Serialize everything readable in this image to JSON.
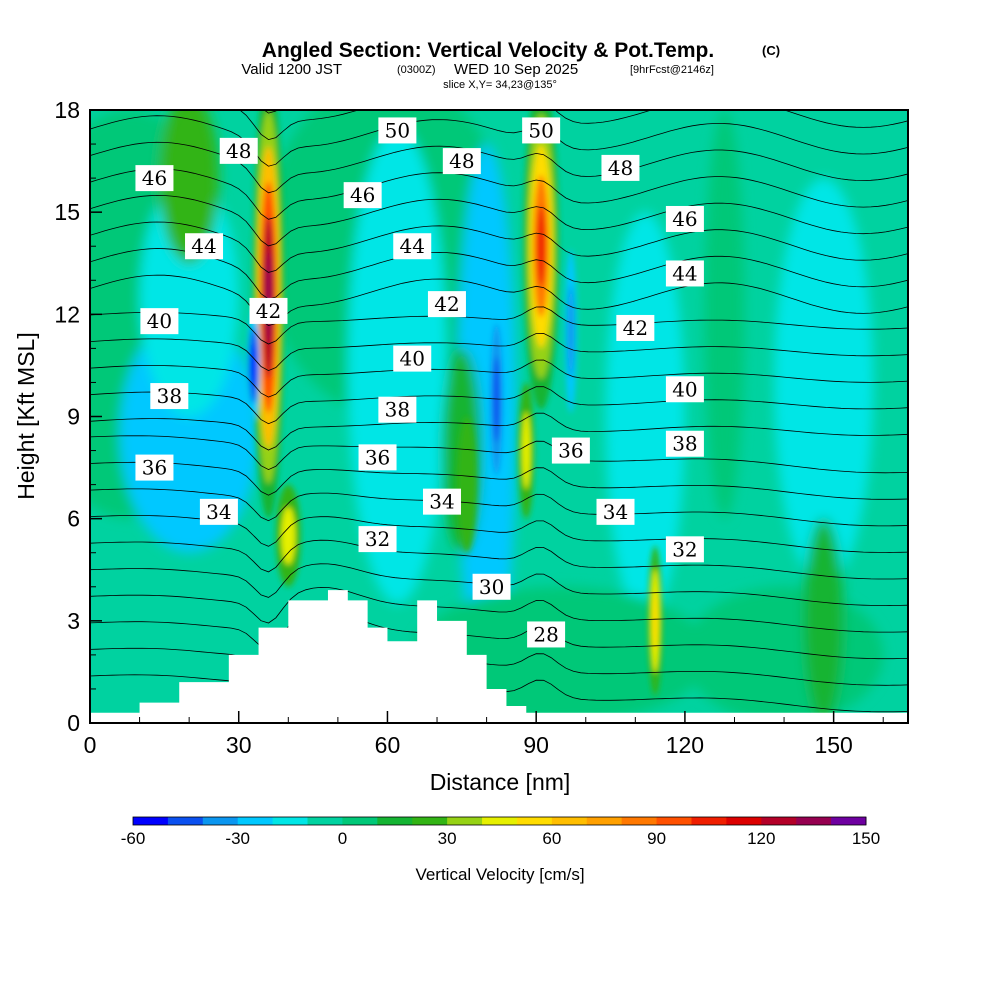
{
  "chart_data": {
    "type": "heatmap",
    "title": "Angled Section: Vertical Velocity & Pot.Temp.",
    "title_units": "(C)",
    "subtitle_prefix": "Valid 1200 JST",
    "subtitle_utc": "(0300Z)",
    "subtitle_date": "WED 10 Sep 2025",
    "subtitle_fcst": "[9hrFcst@2146z]",
    "slice_info": "slice X,Y= 34,23@135°",
    "xlabel": "Distance [nm]",
    "ylabel": "Height [Kft MSL]",
    "xlim": [
      0,
      165
    ],
    "ylim": [
      0,
      18
    ],
    "x_ticks": [
      0,
      30,
      60,
      90,
      120,
      150
    ],
    "y_ticks": [
      0,
      3,
      6,
      9,
      12,
      15,
      18
    ],
    "colorbar": {
      "label": "Vertical Velocity [cm/s]",
      "min": -60,
      "max": 150,
      "step": 10,
      "tick_values": [
        -60,
        -30,
        0,
        30,
        60,
        90,
        120,
        150
      ],
      "colors": [
        "#0000ff",
        "#0a50f0",
        "#0a96f0",
        "#00c8ff",
        "#00e6e6",
        "#00d2a0",
        "#00c878",
        "#14b432",
        "#32b414",
        "#96d214",
        "#e6f000",
        "#ffdc00",
        "#ffbe00",
        "#ffa000",
        "#ff7800",
        "#ff5000",
        "#f01e00",
        "#dc0000",
        "#b40028",
        "#960050",
        "#6e00a0"
      ]
    },
    "terrain_profile_kft": {
      "x_nm": [
        0,
        10,
        18,
        28,
        34,
        40,
        48,
        52,
        56,
        60,
        66,
        70,
        76,
        80,
        84,
        88,
        165
      ],
      "height": [
        0.3,
        0.6,
        1.2,
        2.0,
        2.8,
        3.6,
        3.9,
        3.6,
        2.8,
        2.4,
        3.6,
        3.0,
        2.0,
        1.0,
        0.5,
        0.3,
        0.3
      ]
    },
    "vertical_velocity_features": [
      {
        "x_nm": 36,
        "z_kft": 12.5,
        "peak_cm_s": 130,
        "kind": "updraft"
      },
      {
        "x_nm": 91,
        "z_kft": 14.0,
        "peak_cm_s": 100,
        "kind": "updraft"
      },
      {
        "x_nm": 33,
        "z_kft": 10.5,
        "peak_cm_s": -50,
        "kind": "downdraft"
      },
      {
        "x_nm": 82,
        "z_kft": 9.5,
        "peak_cm_s": -45,
        "kind": "downdraft"
      },
      {
        "x_nm": 97,
        "z_kft": 11.5,
        "peak_cm_s": -40,
        "kind": "downdraft"
      },
      {
        "x_nm": 114,
        "z_kft": 3.0,
        "peak_cm_s": 50,
        "kind": "updraft"
      }
    ],
    "theta_contour_labels": [
      {
        "value": "50",
        "x": 62,
        "z": 17.4
      },
      {
        "value": "50",
        "x": 91,
        "z": 17.4
      },
      {
        "value": "48",
        "x": 30,
        "z": 16.8
      },
      {
        "value": "48",
        "x": 75,
        "z": 16.5
      },
      {
        "value": "48",
        "x": 107,
        "z": 16.3
      },
      {
        "value": "46",
        "x": 13,
        "z": 16.0
      },
      {
        "value": "46",
        "x": 55,
        "z": 15.5
      },
      {
        "value": "46",
        "x": 120,
        "z": 14.8
      },
      {
        "value": "44",
        "x": 23,
        "z": 14.0
      },
      {
        "value": "44",
        "x": 65,
        "z": 14.0
      },
      {
        "value": "44",
        "x": 120,
        "z": 13.2
      },
      {
        "value": "42",
        "x": 36,
        "z": 12.1
      },
      {
        "value": "42",
        "x": 72,
        "z": 12.3
      },
      {
        "value": "42",
        "x": 110,
        "z": 11.6
      },
      {
        "value": "40",
        "x": 14,
        "z": 11.8
      },
      {
        "value": "40",
        "x": 65,
        "z": 10.7
      },
      {
        "value": "40",
        "x": 120,
        "z": 9.8
      },
      {
        "value": "38",
        "x": 16,
        "z": 9.6
      },
      {
        "value": "38",
        "x": 62,
        "z": 9.2
      },
      {
        "value": "38",
        "x": 120,
        "z": 8.2
      },
      {
        "value": "36",
        "x": 13,
        "z": 7.5
      },
      {
        "value": "36",
        "x": 58,
        "z": 7.8
      },
      {
        "value": "36",
        "x": 97,
        "z": 8.0
      },
      {
        "value": "34",
        "x": 26,
        "z": 6.2
      },
      {
        "value": "34",
        "x": 71,
        "z": 6.5
      },
      {
        "value": "34",
        "x": 106,
        "z": 6.2
      },
      {
        "value": "32",
        "x": 58,
        "z": 5.4
      },
      {
        "value": "32",
        "x": 120,
        "z": 5.1
      },
      {
        "value": "30",
        "x": 81,
        "z": 4.0
      },
      {
        "value": "28",
        "x": 92,
        "z": 2.6
      }
    ],
    "theta_contour_levels": [
      26,
      27,
      28,
      29,
      30,
      31,
      32,
      33,
      34,
      35,
      36,
      37,
      38,
      39,
      40,
      41,
      42,
      43,
      44,
      45,
      46,
      47,
      48,
      49,
      50,
      51,
      52
    ]
  }
}
